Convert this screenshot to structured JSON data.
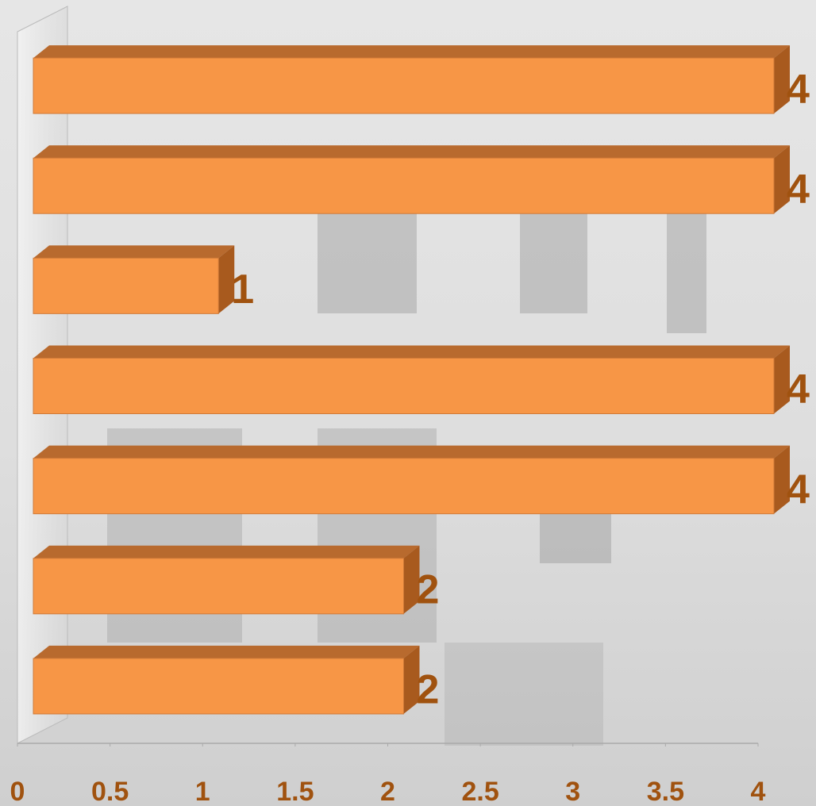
{
  "chart_data": {
    "type": "bar",
    "categories": [
      null,
      null,
      null,
      null,
      null,
      null,
      null
    ],
    "values": [
      4,
      4,
      1,
      4,
      4,
      2,
      2
    ],
    "color": "#f79646",
    "label_color": "#a0520f",
    "xlim": [
      0,
      4
    ],
    "xticks": [
      0,
      0.5,
      1,
      1.5,
      2,
      2.5,
      3,
      3.5,
      4
    ]
  }
}
